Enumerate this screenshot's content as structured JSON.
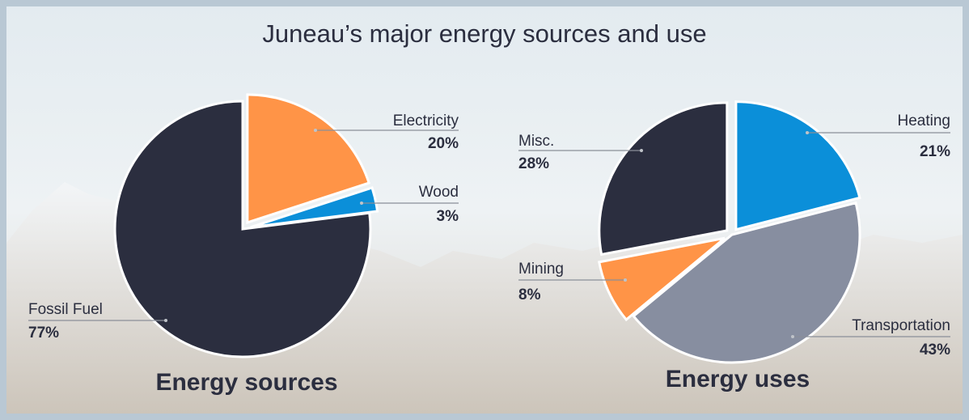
{
  "title": "Juneau’s major energy sources and use",
  "chart_data": [
    {
      "type": "pie",
      "title": "Energy sources",
      "categories": [
        "Electricity",
        "Wood",
        "Fossil Fuel"
      ],
      "values": [
        20,
        3,
        77
      ],
      "value_labels": [
        "20%",
        "3%",
        "77%"
      ],
      "colors": [
        "#ff9447",
        "#0b8fd9",
        "#2b2e3f"
      ]
    },
    {
      "type": "pie",
      "title": "Energy uses",
      "categories": [
        "Heating",
        "Transportation",
        "Mining",
        "Misc."
      ],
      "values": [
        21,
        43,
        8,
        28
      ],
      "value_labels": [
        "21%",
        "43%",
        "8%",
        "28%"
      ],
      "colors": [
        "#0b8fd9",
        "#878ea0",
        "#ff9447",
        "#2b2e3f"
      ]
    }
  ]
}
